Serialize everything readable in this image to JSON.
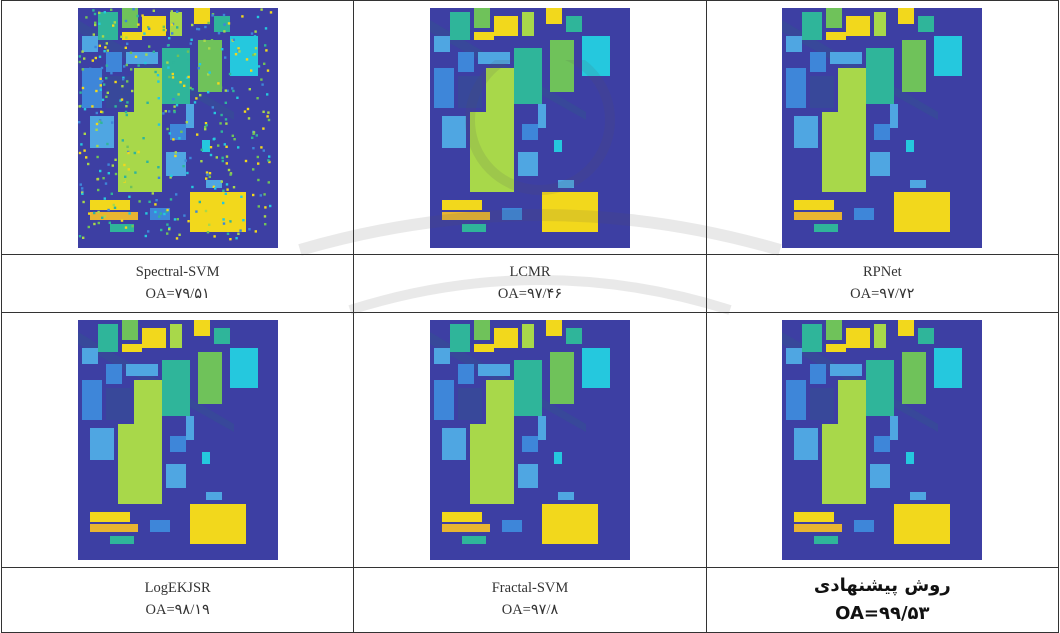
{
  "panels": [
    {
      "method": "Spectral-SVM",
      "oa": "OA=۷۹/۵۱",
      "style": "noisy"
    },
    {
      "method": "LCMR",
      "oa": "OA=۹۷/۴۶",
      "style": "clean"
    },
    {
      "method": "RPNet",
      "oa": "OA=۹۷/۷۲",
      "style": "clean"
    },
    {
      "method": "LogEKJSR",
      "oa": "OA=۹۸/۱۹",
      "style": "clean"
    },
    {
      "method": "Fractal-SVM",
      "oa": "OA=۹۷/۸",
      "style": "clean"
    },
    {
      "method": "روش پیشنهادی",
      "oa": "OA=۹۹/۵۳",
      "style": "clean",
      "emphasis": true
    }
  ],
  "colors": {
    "background_class": "#3d3fa3",
    "yellow": "#f2d81c",
    "light_green": "#a8d84a",
    "green": "#6fc25a",
    "teal": "#2fb59a",
    "cyan": "#25c8de",
    "blue": "#3e86d9",
    "light_blue": "#4fa6e2",
    "navy": "#38489a",
    "orange": "#e8b531"
  }
}
